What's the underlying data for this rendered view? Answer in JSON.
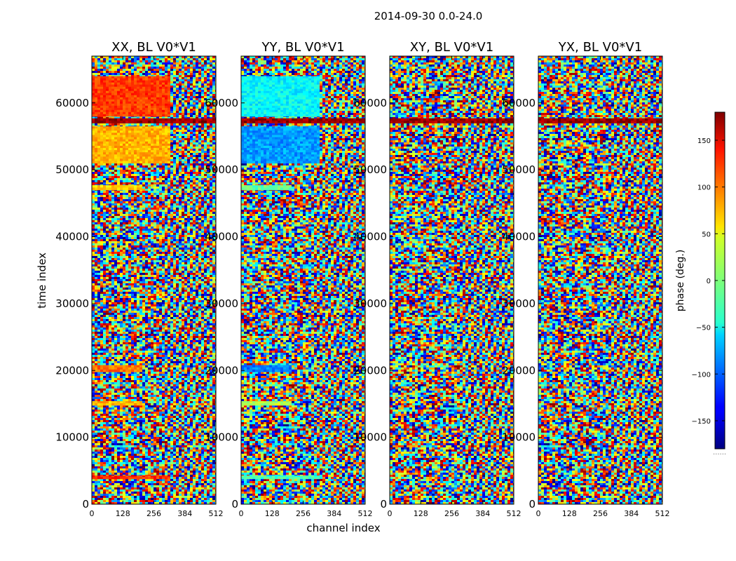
{
  "chart_data": {
    "type": "heatmap",
    "suptitle": "2014-09-30 0.0-24.0",
    "xlabel": "channel index",
    "ylabel": "time index",
    "xlim": [
      0,
      512
    ],
    "ylim": [
      0,
      67000
    ],
    "xticks": [
      0,
      128,
      256,
      384,
      512
    ],
    "xtick_labels": [
      "0",
      "128",
      "256",
      "384",
      "512"
    ],
    "yticks": [
      0,
      10000,
      20000,
      30000,
      40000,
      50000,
      60000
    ],
    "ytick_labels": [
      "0",
      "10000",
      "20000",
      "30000",
      "40000",
      "50000",
      "60000"
    ],
    "colormap": "jet",
    "colorbar": {
      "label": "phase (deg.)",
      "range": [
        -180,
        180
      ],
      "ticks": [
        150,
        100,
        50,
        0,
        -50,
        -100,
        -150
      ],
      "tick_labels": [
        "150",
        "100",
        "50",
        "0",
        "−50",
        "−100",
        "−150"
      ],
      "note": "......"
    },
    "panels": [
      {
        "title": "XX, BL V0*V1",
        "coherent_bands": [
          {
            "t_start": 58000,
            "t_end": 64000,
            "ch_start": 0,
            "ch_end": 320,
            "phase": 115
          },
          {
            "t_start": 51000,
            "t_end": 56500,
            "ch_start": 0,
            "ch_end": 320,
            "phase": 72
          },
          {
            "t_start": 57000,
            "t_end": 57700,
            "ch_start": 0,
            "ch_end": 512,
            "phase": 170
          },
          {
            "t_start": 47000,
            "t_end": 47700,
            "ch_start": 0,
            "ch_end": 200,
            "phase": 60
          },
          {
            "t_start": 19800,
            "t_end": 20800,
            "ch_start": 0,
            "ch_end": 200,
            "phase": 95
          },
          {
            "t_start": 14800,
            "t_end": 15400,
            "ch_start": 0,
            "ch_end": 200,
            "phase": 70
          },
          {
            "t_start": 3800,
            "t_end": 4300,
            "ch_start": 0,
            "ch_end": 320,
            "phase": 120
          }
        ]
      },
      {
        "title": "YY, BL V0*V1",
        "coherent_bands": [
          {
            "t_start": 58000,
            "t_end": 64000,
            "ch_start": 0,
            "ch_end": 320,
            "phase": -45
          },
          {
            "t_start": 51000,
            "t_end": 56500,
            "ch_start": 0,
            "ch_end": 320,
            "phase": -80
          },
          {
            "t_start": 57000,
            "t_end": 57700,
            "ch_start": 0,
            "ch_end": 512,
            "phase": 170
          },
          {
            "t_start": 47000,
            "t_end": 47700,
            "ch_start": 0,
            "ch_end": 200,
            "phase": -10
          },
          {
            "t_start": 19800,
            "t_end": 20800,
            "ch_start": 0,
            "ch_end": 200,
            "phase": -90
          },
          {
            "t_start": 14800,
            "t_end": 15400,
            "ch_start": 0,
            "ch_end": 200,
            "phase": 20
          },
          {
            "t_start": 3800,
            "t_end": 4300,
            "ch_start": 0,
            "ch_end": 320,
            "phase": -20
          }
        ]
      },
      {
        "title": "XY, BL V0*V1",
        "coherent_bands": [
          {
            "t_start": 57000,
            "t_end": 57700,
            "ch_start": 0,
            "ch_end": 512,
            "phase": 170
          }
        ]
      },
      {
        "title": "YX, BL V0*V1",
        "coherent_bands": [
          {
            "t_start": 57000,
            "t_end": 57700,
            "ch_start": 0,
            "ch_end": 512,
            "phase": 170
          }
        ]
      }
    ]
  }
}
